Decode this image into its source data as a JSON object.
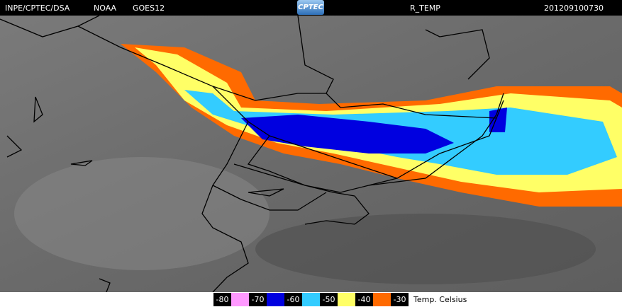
{
  "header": {
    "source": "INPE/CPTEC/DSA",
    "agency": "NOAA",
    "satellite": "GOES12",
    "logo": "CPTEC",
    "product": "R_TEMP",
    "timestamp": "201209100730"
  },
  "legend": {
    "labels": [
      "-80",
      "-70",
      "-60",
      "-50",
      "-40",
      "-30"
    ],
    "colors": [
      "#ff99ff",
      "#0000e0",
      "#33ccff",
      "#ffff66",
      "#ff6a00"
    ],
    "unit": "Temp. Celsius"
  }
}
